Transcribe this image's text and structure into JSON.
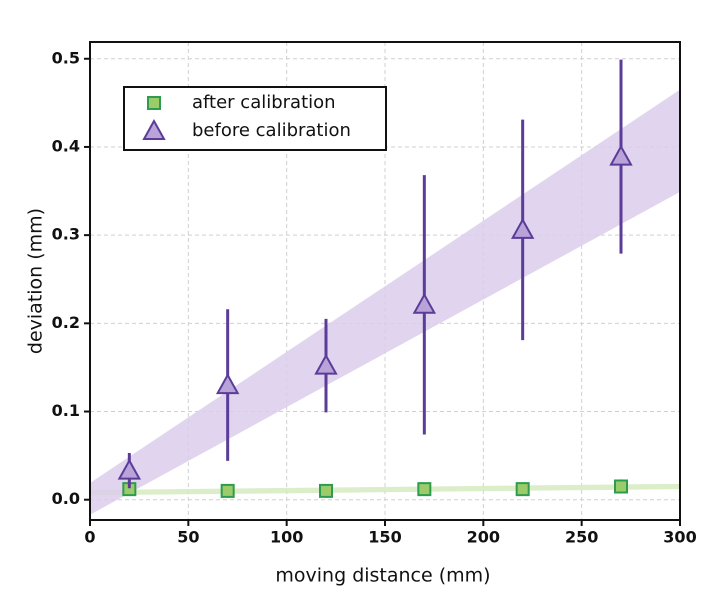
{
  "chart_data": {
    "type": "scatter",
    "x_label": "moving distance (mm)",
    "y_label": "deviation (mm)",
    "x": [
      20,
      70,
      120,
      170,
      220,
      270
    ],
    "xlim": [
      0,
      300
    ],
    "xticks": [
      0,
      50,
      100,
      150,
      200,
      250,
      300
    ],
    "ylim": [
      -0.023,
      0.519
    ],
    "yticks": [
      {
        "value": 0,
        "label": "0.0"
      },
      0.1,
      0.2,
      0.3,
      0.4,
      0.5
    ],
    "grid": true,
    "legend": "upper-left",
    "band_x": [
      0,
      300
    ],
    "series": [
      {
        "name": "after calibration",
        "marker": "square",
        "color": "#2e9c4e",
        "fill": "#9ccc6a",
        "band_color": "#d5eac0",
        "values": [
          0.012,
          0.01,
          0.01,
          0.012,
          0.012,
          0.015
        ],
        "errors": [
          0.005,
          0.005,
          0.004,
          0.005,
          0.005,
          0.008
        ],
        "band_lower": [
          0.005,
          0.012
        ],
        "band_upper": [
          0.011,
          0.018
        ]
      },
      {
        "name": "before calibration",
        "marker": "triangle",
        "color": "#5b3d99",
        "fill": "#b9a3d9",
        "band_color": "#dccdeb",
        "values": [
          0.033,
          0.13,
          0.152,
          0.221,
          0.306,
          0.389
        ],
        "errors": [
          0.02,
          0.086,
          0.053,
          0.147,
          0.125,
          0.11
        ],
        "band_lower": [
          -0.017,
          0.349
        ],
        "band_upper": [
          0.019,
          0.465
        ]
      }
    ]
  }
}
